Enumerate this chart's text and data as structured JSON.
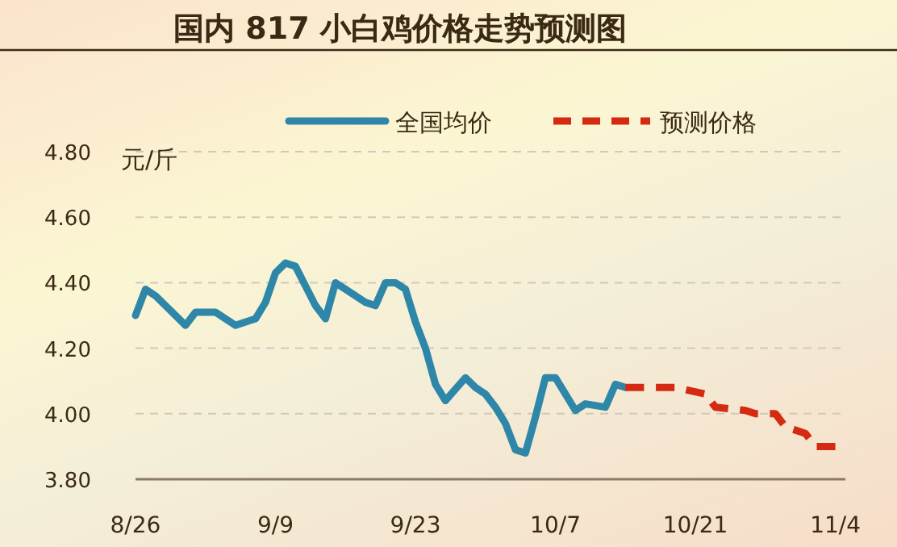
{
  "chart_data": {
    "type": "line",
    "title": "国内 817 小白鸡价格走势预测图",
    "ylabel": "元/斤",
    "xlim": [
      "--08-26",
      "--11-05"
    ],
    "xticks": [
      {
        "value": "--08-26",
        "label": "8/26"
      },
      {
        "value": "--09-09",
        "label": "9/9"
      },
      {
        "value": "--09-23",
        "label": "9/23"
      },
      {
        "value": "--10-07",
        "label": "10/7"
      },
      {
        "value": "--10-21",
        "label": "10/21"
      },
      {
        "value": "--11-04",
        "label": "11/4"
      }
    ],
    "ylim": [
      3.8,
      4.8
    ],
    "yticks": [
      {
        "value": 3.8,
        "label": "3.80"
      },
      {
        "value": 4.0,
        "label": "4.00"
      },
      {
        "value": 4.2,
        "label": "4.20"
      },
      {
        "value": 4.4,
        "label": "4.40"
      },
      {
        "value": 4.6,
        "label": "4.60"
      },
      {
        "value": 4.8,
        "label": "4.80"
      }
    ],
    "grid": "y",
    "legend": "top",
    "series": [
      {
        "name": "全国均价",
        "color": "#2e86a8",
        "line_style": "solid",
        "x": [
          "--08-26",
          "--08-27",
          "--08-28",
          "--08-30",
          "--08-31",
          "--09-01",
          "--09-03",
          "--09-05",
          "--09-07",
          "--09-08",
          "--09-09",
          "--09-10",
          "--09-11",
          "--09-12",
          "--09-13",
          "--09-14",
          "--09-15",
          "--09-16",
          "--09-18",
          "--09-19",
          "--09-20",
          "--09-21",
          "--09-22",
          "--09-23",
          "--09-24",
          "--09-25",
          "--09-26",
          "--09-28",
          "--09-29",
          "--09-30",
          "--10-01",
          "--10-02",
          "--10-03",
          "--10-04",
          "--10-05",
          "--10-06",
          "--10-07",
          "--10-08",
          "--10-09",
          "--10-10",
          "--10-12",
          "--10-13",
          "--10-14"
        ],
        "values": [
          4.3,
          4.38,
          4.36,
          4.3,
          4.27,
          4.31,
          4.31,
          4.27,
          4.29,
          4.34,
          4.43,
          4.46,
          4.45,
          4.39,
          4.33,
          4.29,
          4.4,
          4.38,
          4.34,
          4.33,
          4.4,
          4.4,
          4.38,
          4.28,
          4.2,
          4.09,
          4.04,
          4.11,
          4.08,
          4.06,
          4.02,
          3.97,
          3.89,
          3.88,
          3.99,
          4.11,
          4.11,
          4.06,
          4.01,
          4.03,
          4.02,
          4.09,
          4.08
        ]
      },
      {
        "name": "预测价格",
        "color": "#d42a12",
        "line_style": "dashed",
        "x": [
          "--10-14",
          "--10-19",
          "--10-22",
          "--10-23",
          "--10-26",
          "--10-27",
          "--10-29",
          "--10-30",
          "--10-31",
          "--11-01",
          "--11-02",
          "--11-04"
        ],
        "values": [
          4.08,
          4.08,
          4.06,
          4.02,
          4.01,
          4.0,
          4.0,
          3.96,
          3.95,
          3.94,
          3.9,
          3.9
        ]
      }
    ]
  }
}
